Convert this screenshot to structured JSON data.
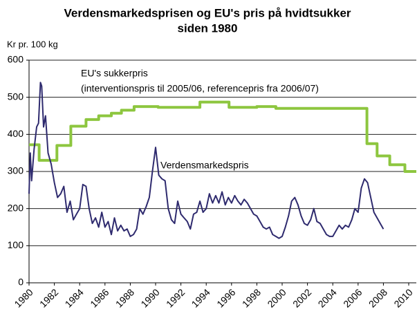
{
  "chart_data": {
    "type": "line",
    "title": "Verdensmarkedsprisen og EU's pris på hvidtsukker",
    "subtitle": "siden 1980",
    "y_label": "Kr pr. 100 kg",
    "annotations": [
      "EU's sukkerpris",
      "(interventionspris til 2005/06, referencepris fra 2006/07)",
      "Verdensmarkedspris"
    ],
    "xlim": [
      1980,
      2010.6
    ],
    "xticks": [
      1980,
      1982,
      1984,
      1986,
      1988,
      1990,
      1992,
      1994,
      1996,
      1998,
      2000,
      2002,
      2004,
      2006,
      2008,
      2010
    ],
    "ylim": [
      0,
      600
    ],
    "yticks": [
      0,
      100,
      200,
      300,
      400,
      500,
      600
    ],
    "grid": true,
    "series": [
      {
        "name": "EU's sukkerpris",
        "color": "#8dc63f",
        "x": [
          1980,
          1980.8,
          1980.8,
          1982.2,
          1982.2,
          1983.3,
          1983.3,
          1984.5,
          1984.5,
          1985.5,
          1985.5,
          1986.5,
          1986.5,
          1987.3,
          1987.3,
          1988.3,
          1988.3,
          1990.2,
          1990.2,
          1993.5,
          1993.5,
          1995.8,
          1995.8,
          1998,
          1998,
          1999.5,
          1999.5,
          2006.7,
          2006.7,
          2007.5,
          2007.5,
          2008.5,
          2008.5,
          2009.7,
          2009.7,
          2010.6
        ],
        "values": [
          372,
          372,
          330,
          330,
          370,
          370,
          422,
          422,
          440,
          440,
          450,
          450,
          457,
          457,
          465,
          465,
          475,
          475,
          473,
          473,
          487,
          487,
          473,
          473,
          475,
          475,
          470,
          470,
          375,
          375,
          342,
          342,
          318,
          318,
          300,
          300
        ]
      },
      {
        "name": "Verdensmarkedspris",
        "color": "#2e2a6e",
        "x": [
          1980.0,
          1980.1,
          1980.2,
          1980.4,
          1980.6,
          1980.75,
          1980.9,
          1981.0,
          1981.15,
          1981.3,
          1981.5,
          1981.75,
          1982.0,
          1982.25,
          1982.5,
          1982.75,
          1983.0,
          1983.25,
          1983.5,
          1983.75,
          1984.0,
          1984.25,
          1984.5,
          1984.75,
          1985.0,
          1985.25,
          1985.5,
          1985.75,
          1986.0,
          1986.25,
          1986.5,
          1986.75,
          1987.0,
          1987.25,
          1987.5,
          1987.75,
          1988.0,
          1988.25,
          1988.5,
          1988.75,
          1989.0,
          1989.25,
          1989.5,
          1989.75,
          1990.0,
          1990.25,
          1990.5,
          1990.75,
          1991.0,
          1991.25,
          1991.5,
          1991.75,
          1992.0,
          1992.25,
          1992.5,
          1992.75,
          1993.0,
          1993.25,
          1993.5,
          1993.75,
          1994.0,
          1994.25,
          1994.5,
          1994.75,
          1995.0,
          1995.25,
          1995.5,
          1995.75,
          1996.0,
          1996.25,
          1996.5,
          1996.75,
          1997.0,
          1997.25,
          1997.5,
          1997.75,
          1998.0,
          1998.25,
          1998.5,
          1998.75,
          1999.0,
          1999.25,
          1999.5,
          1999.75,
          2000.0,
          2000.25,
          2000.5,
          2000.75,
          2001.0,
          2001.25,
          2001.5,
          2001.75,
          2002.0,
          2002.25,
          2002.5,
          2002.75,
          2003.0,
          2003.25,
          2003.5,
          2003.75,
          2004.0,
          2004.25,
          2004.5,
          2004.75,
          2005.0,
          2005.25,
          2005.5,
          2005.75,
          2006.0,
          2006.25,
          2006.5,
          2006.75,
          2007.0,
          2007.25,
          2007.5,
          2007.75,
          2008.0
        ],
        "values": [
          240,
          350,
          275,
          360,
          420,
          430,
          540,
          530,
          420,
          450,
          350,
          320,
          270,
          230,
          240,
          260,
          190,
          220,
          170,
          185,
          200,
          265,
          260,
          200,
          160,
          175,
          150,
          190,
          150,
          165,
          130,
          175,
          140,
          155,
          140,
          145,
          125,
          130,
          145,
          200,
          185,
          205,
          230,
          300,
          365,
          290,
          280,
          275,
          200,
          170,
          160,
          220,
          185,
          175,
          165,
          145,
          185,
          190,
          220,
          190,
          200,
          240,
          215,
          235,
          215,
          245,
          210,
          230,
          215,
          235,
          220,
          210,
          225,
          215,
          200,
          185,
          180,
          165,
          150,
          145,
          150,
          130,
          125,
          120,
          125,
          150,
          180,
          220,
          230,
          210,
          180,
          160,
          155,
          170,
          200,
          165,
          160,
          145,
          130,
          125,
          125,
          140,
          155,
          145,
          155,
          150,
          170,
          200,
          190,
          255,
          280,
          270,
          230,
          190,
          175,
          160,
          145
        ]
      }
    ]
  }
}
